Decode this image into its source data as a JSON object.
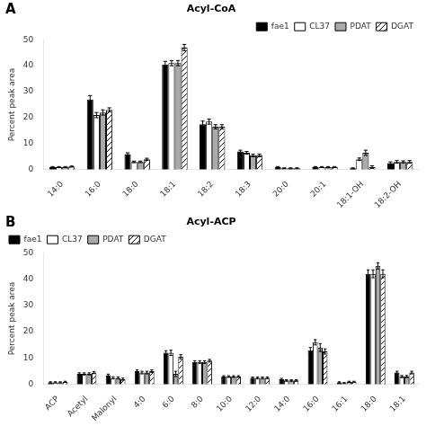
{
  "chart_data": [
    {
      "type": "bar",
      "title": "Acyl-CoA",
      "annotations": [
        "A"
      ],
      "categories": [
        "14:0",
        "16:0",
        "18:0",
        "18:1",
        "18:2",
        "18:3",
        "20:0",
        "20:1",
        "18:1-OH",
        "18:2-OH"
      ],
      "series": [
        {
          "name": "fae1",
          "color": "#000000",
          "values": [
            1.0,
            27.0,
            6.0,
            40.5,
            17.5,
            7.0,
            1.0,
            1.0,
            0.5,
            2.5
          ],
          "errors": [
            0.2,
            1.5,
            0.5,
            1.2,
            1.2,
            0.5,
            0.2,
            0.2,
            0.2,
            0.5
          ]
        },
        {
          "name": "CL37",
          "color": "#ffffff",
          "values": [
            1.0,
            21.0,
            3.0,
            41.0,
            18.5,
            6.5,
            0.5,
            1.0,
            4.0,
            3.0
          ],
          "errors": [
            0.2,
            1.0,
            0.3,
            1.0,
            1.0,
            0.5,
            0.2,
            0.2,
            0.5,
            0.5
          ]
        },
        {
          "name": "PDAT",
          "color": "#aaaaaa",
          "values": [
            1.0,
            22.0,
            3.0,
            41.0,
            16.5,
            5.5,
            0.5,
            1.0,
            6.5,
            3.0
          ],
          "errors": [
            0.2,
            1.0,
            0.3,
            1.0,
            0.8,
            0.5,
            0.2,
            0.2,
            1.0,
            0.4
          ]
        },
        {
          "name": "DGAT",
          "color": "#ffffff",
          "values": [
            1.2,
            23.0,
            4.0,
            47.0,
            16.5,
            5.5,
            0.5,
            1.0,
            1.0,
            3.0
          ],
          "errors": [
            0.2,
            0.8,
            0.4,
            1.2,
            0.8,
            0.5,
            0.2,
            0.2,
            0.5,
            0.5
          ]
        }
      ],
      "ylabel": "Percent peak area",
      "ylim": [
        0,
        50
      ],
      "yticks": [
        0,
        10,
        20,
        30,
        40,
        50
      ],
      "grid": false,
      "legend": "upper right"
    },
    {
      "type": "bar",
      "title": "Acyl-ACP",
      "annotations": [
        "B"
      ],
      "categories": [
        "ACP",
        "Acetyl",
        "Malonyl",
        "4:0",
        "6:0",
        "8:0",
        "10:0",
        "12:0",
        "14:0",
        "16:0",
        "16:1",
        "18:0",
        "18:1"
      ],
      "series": [
        {
          "name": "fae1",
          "color": "#000000",
          "values": [
            0.8,
            4.0,
            3.5,
            5.0,
            12.0,
            8.5,
            3.0,
            2.5,
            2.0,
            13.0,
            0.8,
            42.0,
            4.5
          ],
          "errors": [
            0.2,
            0.4,
            0.4,
            0.5,
            0.8,
            0.5,
            0.3,
            0.3,
            0.3,
            1.0,
            0.2,
            1.5,
            0.5
          ]
        },
        {
          "name": "CL37",
          "color": "#ffffff",
          "values": [
            0.8,
            4.0,
            2.5,
            4.5,
            12.0,
            8.5,
            3.0,
            2.5,
            1.5,
            16.0,
            0.5,
            42.0,
            3.0
          ],
          "errors": [
            0.2,
            0.4,
            0.4,
            0.5,
            1.0,
            0.5,
            0.3,
            0.3,
            0.3,
            1.0,
            0.2,
            1.5,
            0.4
          ]
        },
        {
          "name": "PDAT",
          "color": "#aaaaaa",
          "values": [
            0.8,
            4.0,
            2.5,
            4.5,
            4.0,
            8.5,
            3.0,
            2.5,
            1.5,
            14.0,
            1.0,
            45.0,
            3.0
          ],
          "errors": [
            0.2,
            0.4,
            0.4,
            0.5,
            1.0,
            0.5,
            0.3,
            0.3,
            0.3,
            1.5,
            0.2,
            1.2,
            0.4
          ]
        },
        {
          "name": "DGAT",
          "color": "#ffffff",
          "values": [
            1.0,
            4.5,
            2.0,
            5.0,
            10.5,
            9.0,
            3.0,
            2.5,
            1.5,
            12.5,
            1.0,
            42.0,
            4.5
          ],
          "errors": [
            0.2,
            0.4,
            0.4,
            0.5,
            0.8,
            0.5,
            0.3,
            0.3,
            0.3,
            1.0,
            0.2,
            1.5,
            0.5
          ]
        }
      ],
      "ylabel": "Percent peak area",
      "ylim": [
        0,
        50
      ],
      "yticks": [
        0,
        10,
        20,
        30,
        40,
        50
      ],
      "grid": false,
      "legend": "upper left"
    }
  ]
}
